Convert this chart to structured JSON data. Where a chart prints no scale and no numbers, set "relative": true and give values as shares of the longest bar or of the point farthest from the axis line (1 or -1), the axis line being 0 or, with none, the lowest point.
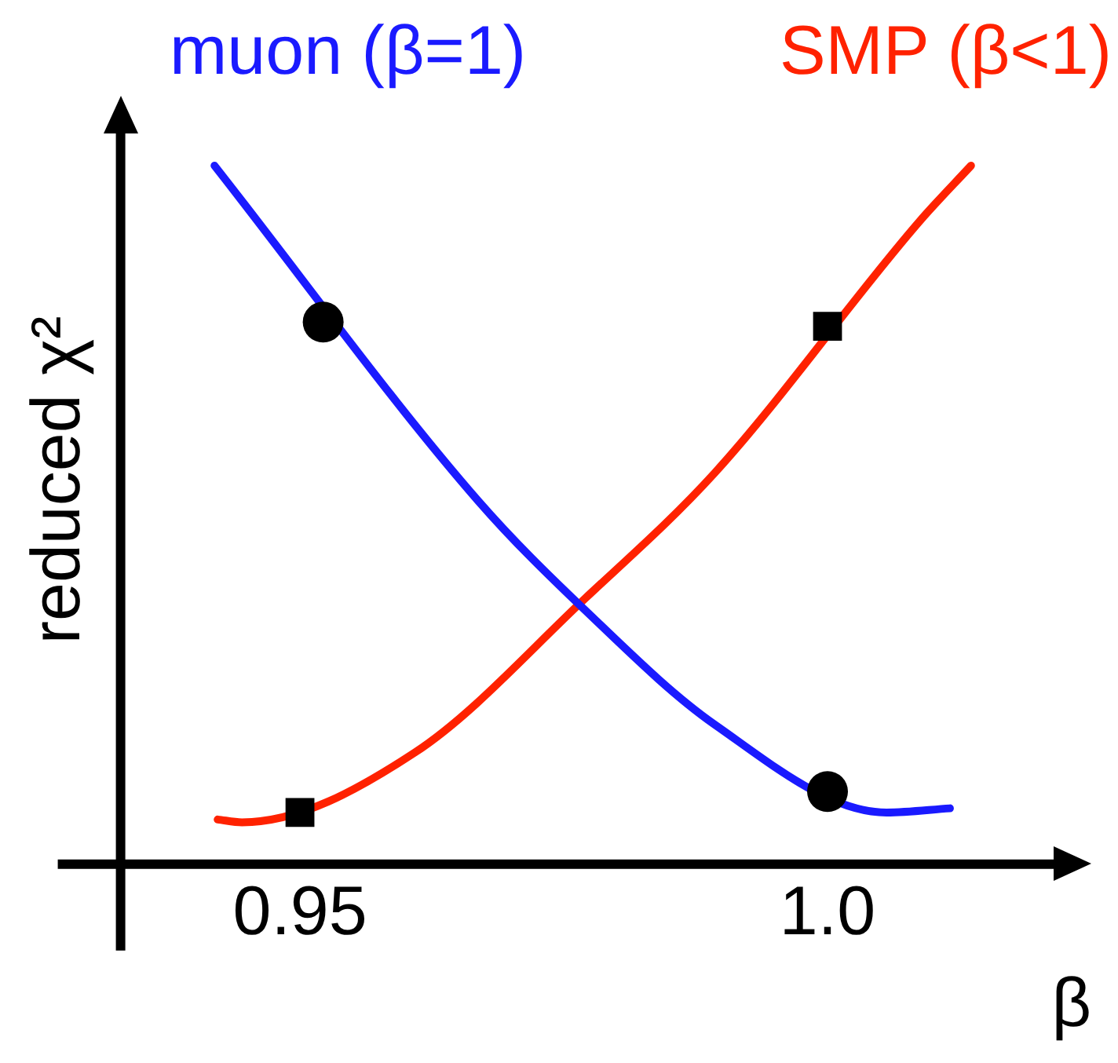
{
  "chart_data": {
    "type": "line",
    "xlabel": "β",
    "ylabel": "reduced χ²",
    "relative": true,
    "xlim": [
      0.933,
      1.025
    ],
    "xticks": [
      0.95,
      {
        "value": 1.0,
        "label": "1.0"
      }
    ],
    "grid": false,
    "legend": false,
    "marker": "none",
    "line_style": "solid",
    "series": [
      {
        "name": "muon (β=1)",
        "color": "#1a1aff",
        "x": [
          0.9419,
          0.9669,
          0.977,
          0.9893,
          1.0056,
          1.0116
        ],
        "values": [
          1.0,
          0.52,
          0.364,
          0.2,
          0.074,
          0.08
        ]
      },
      {
        "name": "SMP (β<1)",
        "color": "#ff2200",
        "x": [
          0.9422,
          0.9445,
          0.9609,
          0.977,
          0.9893,
          1.0087,
          1.0136
        ],
        "values": [
          0.064,
          0.06,
          0.16,
          0.38,
          0.56,
          0.92,
          1.0
        ]
      },
      {
        "type": "scatter",
        "marker": "circle",
        "color": "#000000",
        "x": [
          0.9522,
          1.0
        ],
        "values": [
          0.776,
          0.104
        ]
      },
      {
        "type": "scatter",
        "marker": "square",
        "color": "#000000",
        "x": [
          0.95,
          1.0
        ],
        "values": [
          0.074,
          0.77
        ]
      }
    ]
  }
}
